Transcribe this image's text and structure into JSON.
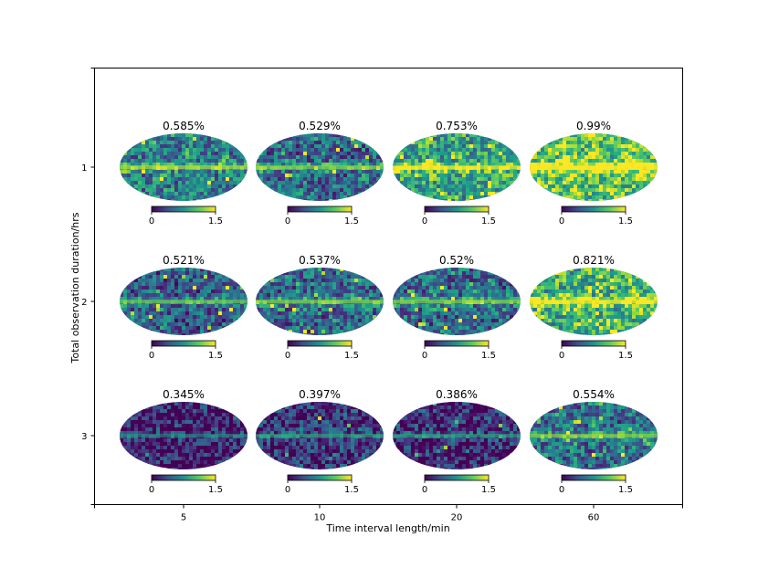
{
  "chart_data": {
    "type": "heatmap",
    "title": "",
    "xlabel": "Time interval length/min",
    "ylabel": "Total observation duration/hrs",
    "x_ticks": [
      "5",
      "10",
      "20",
      "60"
    ],
    "y_ticks": [
      "1",
      "2",
      "3"
    ],
    "colorbar": {
      "min": 0,
      "max": 1.5,
      "tick_labels": [
        "0",
        "1.5"
      ],
      "colormap": "viridis"
    },
    "map_projection": "mollweide",
    "grid": false,
    "panels": [
      {
        "row": "1",
        "col": "5",
        "label": "0.585%",
        "value": 0.585,
        "intensity": 0.58
      },
      {
        "row": "1",
        "col": "10",
        "label": "0.529%",
        "value": 0.529,
        "intensity": 0.5
      },
      {
        "row": "1",
        "col": "20",
        "label": "0.753%",
        "value": 0.753,
        "intensity": 0.74
      },
      {
        "row": "1",
        "col": "60",
        "label": "0.99%",
        "value": 0.99,
        "intensity": 0.92
      },
      {
        "row": "2",
        "col": "5",
        "label": "0.521%",
        "value": 0.521,
        "intensity": 0.46
      },
      {
        "row": "2",
        "col": "10",
        "label": "0.537%",
        "value": 0.537,
        "intensity": 0.5
      },
      {
        "row": "2",
        "col": "20",
        "label": "0.52%",
        "value": 0.52,
        "intensity": 0.5
      },
      {
        "row": "2",
        "col": "60",
        "label": "0.821%",
        "value": 0.821,
        "intensity": 0.8
      },
      {
        "row": "3",
        "col": "5",
        "label": "0.345%",
        "value": 0.345,
        "intensity": 0.22
      },
      {
        "row": "3",
        "col": "10",
        "label": "0.397%",
        "value": 0.397,
        "intensity": 0.3
      },
      {
        "row": "3",
        "col": "20",
        "label": "0.386%",
        "value": 0.386,
        "intensity": 0.28
      },
      {
        "row": "3",
        "col": "60",
        "label": "0.554%",
        "value": 0.554,
        "intensity": 0.52
      }
    ]
  }
}
